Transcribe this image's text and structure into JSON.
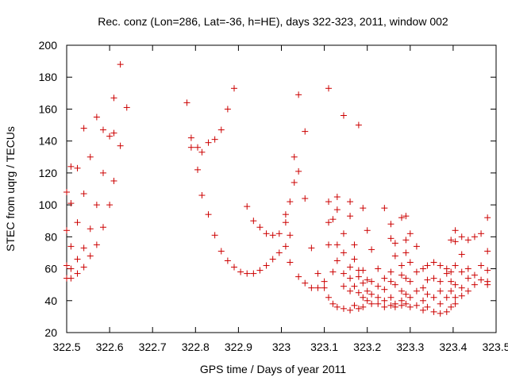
{
  "chart_data": {
    "type": "scatter",
    "title": "Rec. conz (Lon=286, Lat=-36, h=HE), days 322-323, 2011, window 002",
    "xlabel": "GPS time / Days of year 2011",
    "ylabel": "STEC from uqrg / TECUs",
    "xlim": [
      322.5,
      323.5
    ],
    "ylim": [
      20,
      200
    ],
    "xticks": [
      "322.5",
      "322.6",
      "322.7",
      "322.8",
      "322.9",
      "323",
      "323.1",
      "323.2",
      "323.3",
      "323.4",
      "323.5"
    ],
    "yticks": [
      "20",
      "40",
      "60",
      "80",
      "100",
      "120",
      "140",
      "160",
      "180",
      "200"
    ],
    "marker": "+",
    "color": "#cc0000",
    "grid": false,
    "points": [
      [
        322.5,
        108
      ],
      [
        322.5,
        84
      ],
      [
        322.5,
        62
      ],
      [
        322.5,
        54
      ],
      [
        322.51,
        124
      ],
      [
        322.51,
        101
      ],
      [
        322.51,
        74
      ],
      [
        322.51,
        60
      ],
      [
        322.51,
        54
      ],
      [
        322.525,
        123
      ],
      [
        322.525,
        89
      ],
      [
        322.525,
        66
      ],
      [
        322.525,
        57
      ],
      [
        322.54,
        148
      ],
      [
        322.54,
        107
      ],
      [
        322.54,
        73
      ],
      [
        322.54,
        61
      ],
      [
        322.555,
        130
      ],
      [
        322.555,
        85
      ],
      [
        322.555,
        68
      ],
      [
        322.57,
        155
      ],
      [
        322.57,
        100
      ],
      [
        322.57,
        75
      ],
      [
        322.585,
        147
      ],
      [
        322.585,
        120
      ],
      [
        322.585,
        86
      ],
      [
        322.6,
        143
      ],
      [
        322.6,
        100
      ],
      [
        322.61,
        167
      ],
      [
        322.61,
        145
      ],
      [
        322.61,
        115
      ],
      [
        322.625,
        188
      ],
      [
        322.625,
        137
      ],
      [
        322.64,
        161
      ],
      [
        322.78,
        164
      ],
      [
        322.79,
        142
      ],
      [
        322.79,
        136
      ],
      [
        322.805,
        136
      ],
      [
        322.805,
        122
      ],
      [
        322.815,
        133
      ],
      [
        322.815,
        106
      ],
      [
        322.83,
        139
      ],
      [
        322.83,
        94
      ],
      [
        322.845,
        141
      ],
      [
        322.845,
        81
      ],
      [
        322.86,
        147
      ],
      [
        322.86,
        71
      ],
      [
        322.875,
        160
      ],
      [
        322.875,
        65
      ],
      [
        322.89,
        173
      ],
      [
        322.89,
        61
      ],
      [
        322.905,
        58
      ],
      [
        322.92,
        99
      ],
      [
        322.92,
        57
      ],
      [
        322.935,
        90
      ],
      [
        322.935,
        57
      ],
      [
        322.95,
        86
      ],
      [
        322.95,
        59
      ],
      [
        322.965,
        82
      ],
      [
        322.965,
        62
      ],
      [
        322.98,
        81
      ],
      [
        322.98,
        66
      ],
      [
        322.995,
        82
      ],
      [
        322.995,
        70
      ],
      [
        323.01,
        94
      ],
      [
        323.01,
        89
      ],
      [
        323.01,
        74
      ],
      [
        323.02,
        102
      ],
      [
        323.02,
        81
      ],
      [
        323.02,
        64
      ],
      [
        323.03,
        130
      ],
      [
        323.03,
        114
      ],
      [
        323.04,
        169
      ],
      [
        323.04,
        121
      ],
      [
        323.04,
        55
      ],
      [
        323.055,
        146
      ],
      [
        323.055,
        104
      ],
      [
        323.055,
        51
      ],
      [
        323.07,
        73
      ],
      [
        323.07,
        48
      ],
      [
        323.085,
        48
      ],
      [
        323.085,
        57
      ],
      [
        323.1,
        48
      ],
      [
        323.1,
        52
      ],
      [
        323.11,
        173
      ],
      [
        323.11,
        102
      ],
      [
        323.11,
        89
      ],
      [
        323.11,
        75
      ],
      [
        323.11,
        42
      ],
      [
        323.12,
        91
      ],
      [
        323.12,
        58
      ],
      [
        323.12,
        38
      ],
      [
        323.13,
        105
      ],
      [
        323.13,
        97
      ],
      [
        323.13,
        75
      ],
      [
        323.13,
        65
      ],
      [
        323.13,
        36
      ],
      [
        323.145,
        156
      ],
      [
        323.145,
        82
      ],
      [
        323.145,
        70
      ],
      [
        323.145,
        57
      ],
      [
        323.145,
        49
      ],
      [
        323.145,
        35
      ],
      [
        323.16,
        102
      ],
      [
        323.16,
        93
      ],
      [
        323.16,
        61
      ],
      [
        323.16,
        54
      ],
      [
        323.16,
        46
      ],
      [
        323.16,
        34
      ],
      [
        323.17,
        75
      ],
      [
        323.17,
        66
      ],
      [
        323.17,
        49
      ],
      [
        323.17,
        37
      ],
      [
        323.18,
        150
      ],
      [
        323.18,
        59
      ],
      [
        323.18,
        55
      ],
      [
        323.18,
        45
      ],
      [
        323.18,
        35
      ],
      [
        323.19,
        98
      ],
      [
        323.19,
        59
      ],
      [
        323.19,
        51
      ],
      [
        323.19,
        42
      ],
      [
        323.19,
        36
      ],
      [
        323.2,
        84
      ],
      [
        323.2,
        53
      ],
      [
        323.2,
        46
      ],
      [
        323.2,
        40
      ],
      [
        323.21,
        72
      ],
      [
        323.21,
        52
      ],
      [
        323.21,
        44
      ],
      [
        323.21,
        38
      ],
      [
        323.225,
        60
      ],
      [
        323.225,
        49
      ],
      [
        323.225,
        42
      ],
      [
        323.225,
        38
      ],
      [
        323.24,
        98
      ],
      [
        323.24,
        54
      ],
      [
        323.24,
        47
      ],
      [
        323.24,
        40
      ],
      [
        323.24,
        36
      ],
      [
        323.255,
        88
      ],
      [
        323.255,
        79
      ],
      [
        323.255,
        58
      ],
      [
        323.255,
        52
      ],
      [
        323.255,
        42
      ],
      [
        323.255,
        37
      ],
      [
        323.265,
        76
      ],
      [
        323.265,
        68
      ],
      [
        323.265,
        50
      ],
      [
        323.265,
        38
      ],
      [
        323.265,
        36
      ],
      [
        323.28,
        92
      ],
      [
        323.28,
        62
      ],
      [
        323.28,
        56
      ],
      [
        323.28,
        46
      ],
      [
        323.28,
        40
      ],
      [
        323.28,
        37
      ],
      [
        323.29,
        93
      ],
      [
        323.29,
        78
      ],
      [
        323.29,
        70
      ],
      [
        323.29,
        54
      ],
      [
        323.29,
        44
      ],
      [
        323.29,
        38
      ],
      [
        323.3,
        82
      ],
      [
        323.3,
        64
      ],
      [
        323.3,
        52
      ],
      [
        323.3,
        42
      ],
      [
        323.3,
        36
      ],
      [
        323.315,
        74
      ],
      [
        323.315,
        58
      ],
      [
        323.315,
        46
      ],
      [
        323.315,
        37
      ],
      [
        323.33,
        60
      ],
      [
        323.33,
        48
      ],
      [
        323.33,
        40
      ],
      [
        323.33,
        34
      ],
      [
        323.34,
        62
      ],
      [
        323.34,
        53
      ],
      [
        323.34,
        44
      ],
      [
        323.34,
        36
      ],
      [
        323.355,
        64
      ],
      [
        323.355,
        54
      ],
      [
        323.355,
        42
      ],
      [
        323.355,
        33
      ],
      [
        323.37,
        62
      ],
      [
        323.37,
        52
      ],
      [
        323.37,
        46
      ],
      [
        323.37,
        38
      ],
      [
        323.37,
        32
      ],
      [
        323.385,
        60
      ],
      [
        323.385,
        57
      ],
      [
        323.385,
        42
      ],
      [
        323.385,
        33
      ],
      [
        323.395,
        78
      ],
      [
        323.395,
        58
      ],
      [
        323.395,
        52
      ],
      [
        323.395,
        46
      ],
      [
        323.395,
        36
      ],
      [
        323.405,
        84
      ],
      [
        323.405,
        77
      ],
      [
        323.405,
        62
      ],
      [
        323.405,
        50
      ],
      [
        323.405,
        42
      ],
      [
        323.405,
        38
      ],
      [
        323.42,
        80
      ],
      [
        323.42,
        69
      ],
      [
        323.42,
        58
      ],
      [
        323.42,
        48
      ],
      [
        323.42,
        43
      ],
      [
        323.435,
        78
      ],
      [
        323.435,
        60
      ],
      [
        323.435,
        54
      ],
      [
        323.435,
        46
      ],
      [
        323.45,
        80
      ],
      [
        323.45,
        56
      ],
      [
        323.45,
        50
      ],
      [
        323.465,
        82
      ],
      [
        323.465,
        62
      ],
      [
        323.465,
        53
      ],
      [
        323.48,
        92
      ],
      [
        323.48,
        71
      ],
      [
        323.48,
        59
      ],
      [
        323.48,
        52
      ],
      [
        323.48,
        50
      ]
    ]
  }
}
